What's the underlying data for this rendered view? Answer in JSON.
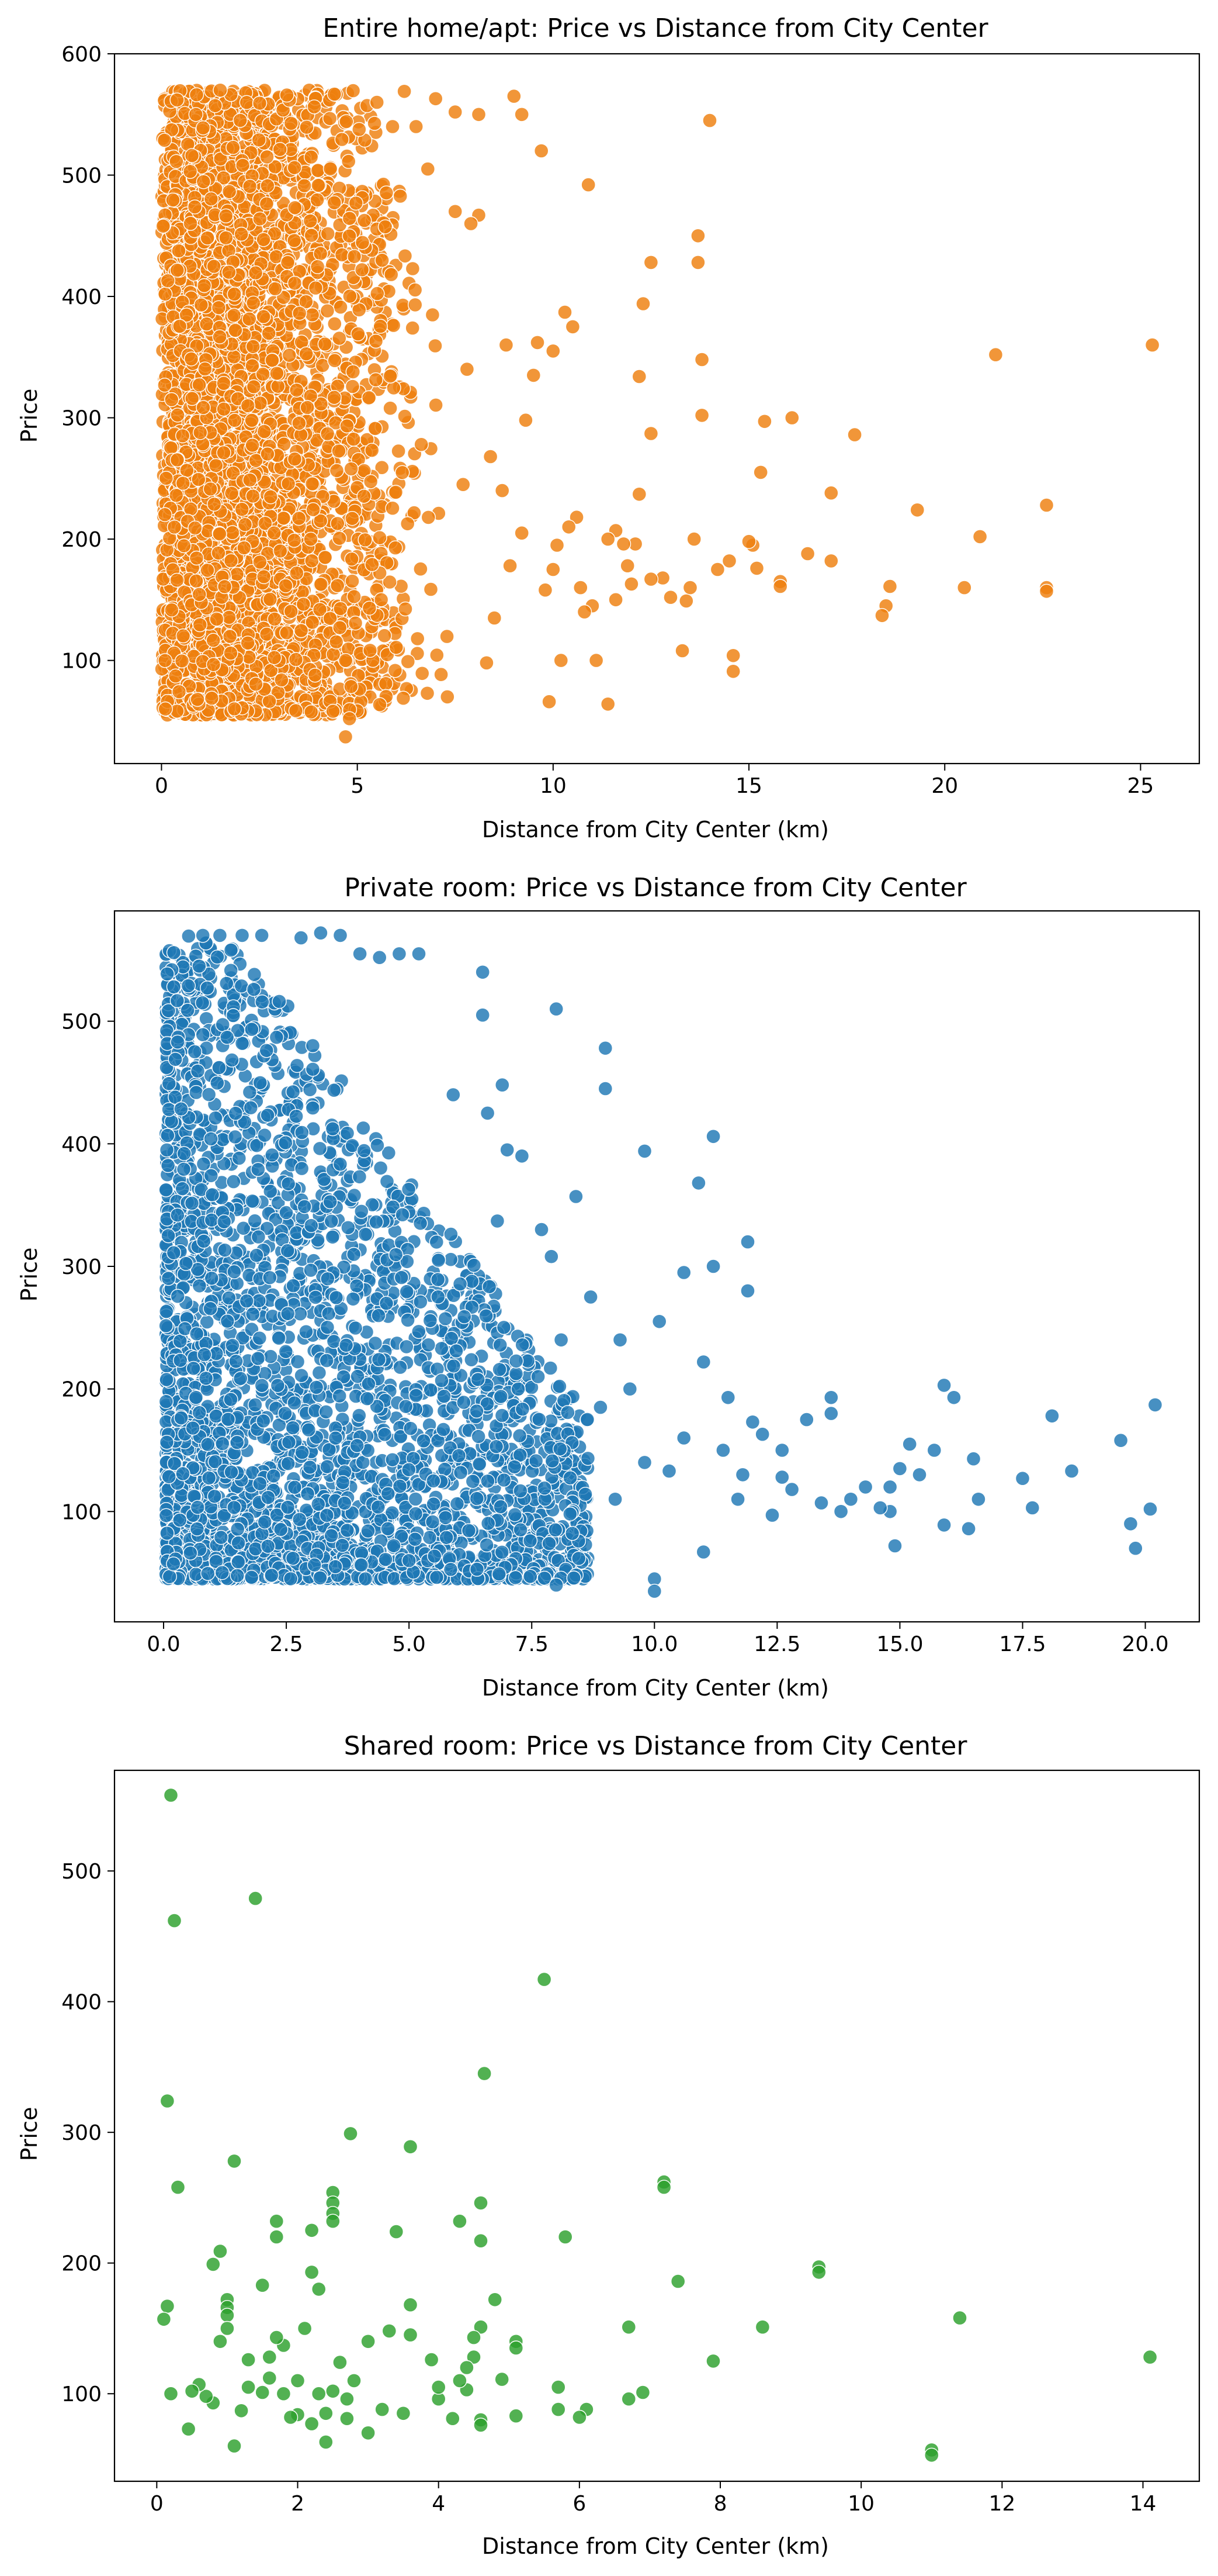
{
  "chart_data": [
    {
      "type": "scatter",
      "title": "Entire home/apt: Price vs Distance from City Center",
      "xlabel": "Distance from City Center (km)",
      "ylabel": "Price",
      "xlim": [
        -1.2,
        26.5
      ],
      "ylim": [
        15,
        600
      ],
      "xticks": [
        0,
        5,
        10,
        15,
        20,
        25
      ],
      "yticks": [
        100,
        200,
        300,
        400,
        500,
        600
      ],
      "grid": false,
      "color": "#ee7f0e",
      "points": [
        [
          25.3,
          360
        ],
        [
          22.6,
          228
        ],
        [
          22.6,
          160
        ],
        [
          22.6,
          157
        ],
        [
          21.3,
          352
        ],
        [
          20.9,
          202
        ],
        [
          20.5,
          160
        ],
        [
          19.3,
          224
        ],
        [
          18.5,
          145
        ],
        [
          18.4,
          137
        ],
        [
          18.6,
          161
        ],
        [
          17.7,
          286
        ],
        [
          17.1,
          238
        ],
        [
          17.1,
          182
        ],
        [
          16.5,
          188
        ],
        [
          16.1,
          300
        ],
        [
          15.8,
          165
        ],
        [
          15.8,
          161
        ],
        [
          15.4,
          297
        ],
        [
          15.3,
          255
        ],
        [
          15.2,
          176
        ],
        [
          15.1,
          195
        ],
        [
          15.0,
          198
        ],
        [
          14.6,
          104
        ],
        [
          14.6,
          91
        ],
        [
          14.5,
          182
        ],
        [
          14.2,
          175
        ],
        [
          14.0,
          545
        ],
        [
          13.8,
          348
        ],
        [
          13.8,
          302
        ],
        [
          13.7,
          450
        ],
        [
          13.7,
          428
        ],
        [
          13.6,
          200
        ],
        [
          13.5,
          160
        ],
        [
          13.4,
          149
        ],
        [
          13.3,
          108
        ],
        [
          13.0,
          152
        ],
        [
          12.8,
          168
        ],
        [
          12.5,
          167
        ],
        [
          12.5,
          428
        ],
        [
          12.5,
          287
        ],
        [
          12.3,
          394
        ],
        [
          12.2,
          334
        ],
        [
          12.2,
          237
        ],
        [
          12.1,
          196
        ],
        [
          12.0,
          163
        ],
        [
          11.9,
          178
        ],
        [
          11.8,
          196
        ],
        [
          11.6,
          207
        ],
        [
          11.6,
          150
        ],
        [
          11.4,
          200
        ],
        [
          11.4,
          64
        ],
        [
          11.1,
          100
        ],
        [
          10.9,
          492
        ],
        [
          10.7,
          160
        ],
        [
          10.6,
          218
        ],
        [
          10.5,
          375
        ],
        [
          10.3,
          387
        ],
        [
          10.2,
          100
        ],
        [
          10.1,
          195
        ],
        [
          10.0,
          355
        ],
        [
          10.0,
          175
        ],
        [
          9.9,
          66
        ],
        [
          9.7,
          520
        ],
        [
          9.6,
          362
        ],
        [
          9.5,
          335
        ],
        [
          9.3,
          298
        ],
        [
          9.2,
          205
        ],
        [
          9.2,
          550
        ],
        [
          9.0,
          565
        ],
        [
          8.8,
          360
        ],
        [
          8.7,
          240
        ],
        [
          8.5,
          135
        ],
        [
          8.4,
          268
        ],
        [
          8.1,
          467
        ],
        [
          8.1,
          550
        ],
        [
          7.9,
          460
        ],
        [
          7.8,
          340
        ],
        [
          7.5,
          470
        ],
        [
          7.5,
          552
        ],
        [
          7.3,
          70
        ],
        [
          7.0,
          563
        ],
        [
          6.5,
          540
        ],
        [
          6.2,
          569
        ],
        [
          5.9,
          540
        ],
        [
          4.7,
          37
        ],
        [
          4.8,
          52
        ],
        [
          11.0,
          145
        ],
        [
          10.8,
          140
        ],
        [
          10.4,
          210
        ],
        [
          9.8,
          158
        ],
        [
          8.9,
          178
        ],
        [
          8.3,
          98
        ],
        [
          7.7,
          245
        ],
        [
          6.8,
          505
        ],
        [
          5.5,
          560
        ],
        [
          3.2,
          566
        ],
        [
          1.5,
          570
        ],
        [
          0.1,
          60
        ]
      ]
    },
    {
      "type": "scatter",
      "title": "Private room: Price vs Distance from City Center",
      "xlabel": "Distance from City Center (km)",
      "ylabel": "Price",
      "xlim": [
        -1.0,
        21.1
      ],
      "ylim": [
        10,
        590
      ],
      "xticks": [
        0.0,
        2.5,
        5.0,
        7.5,
        10.0,
        12.5,
        15.0,
        17.5,
        20.0
      ],
      "yticks": [
        100,
        200,
        300,
        400,
        500
      ],
      "grid": false,
      "color": "#1f77b4",
      "points": [
        [
          20.2,
          187
        ],
        [
          20.1,
          102
        ],
        [
          19.8,
          70
        ],
        [
          19.7,
          90
        ],
        [
          19.5,
          158
        ],
        [
          18.5,
          133
        ],
        [
          18.1,
          178
        ],
        [
          17.7,
          103
        ],
        [
          17.5,
          127
        ],
        [
          16.6,
          110
        ],
        [
          16.5,
          143
        ],
        [
          16.4,
          86
        ],
        [
          16.1,
          193
        ],
        [
          15.9,
          203
        ],
        [
          15.9,
          89
        ],
        [
          15.7,
          150
        ],
        [
          15.4,
          130
        ],
        [
          15.2,
          155
        ],
        [
          15.0,
          135
        ],
        [
          14.8,
          120
        ],
        [
          14.8,
          100
        ],
        [
          14.9,
          72
        ],
        [
          14.6,
          103
        ],
        [
          14.3,
          120
        ],
        [
          14.0,
          110
        ],
        [
          13.8,
          100
        ],
        [
          13.6,
          193
        ],
        [
          13.6,
          180
        ],
        [
          13.4,
          107
        ],
        [
          13.1,
          175
        ],
        [
          12.8,
          118
        ],
        [
          12.6,
          128
        ],
        [
          12.6,
          150
        ],
        [
          12.4,
          97
        ],
        [
          12.2,
          163
        ],
        [
          12.0,
          173
        ],
        [
          11.9,
          320
        ],
        [
          11.9,
          280
        ],
        [
          11.8,
          130
        ],
        [
          11.7,
          110
        ],
        [
          11.5,
          193
        ],
        [
          11.4,
          150
        ],
        [
          11.2,
          406
        ],
        [
          11.2,
          300
        ],
        [
          11.0,
          222
        ],
        [
          11.0,
          67
        ],
        [
          10.9,
          368
        ],
        [
          10.6,
          295
        ],
        [
          10.6,
          160
        ],
        [
          10.3,
          133
        ],
        [
          10.1,
          255
        ],
        [
          10.0,
          45
        ],
        [
          10.0,
          35
        ],
        [
          9.8,
          394
        ],
        [
          9.8,
          140
        ],
        [
          9.5,
          200
        ],
        [
          9.3,
          240
        ],
        [
          9.2,
          110
        ],
        [
          9.0,
          478
        ],
        [
          9.0,
          445
        ],
        [
          8.9,
          185
        ],
        [
          8.7,
          275
        ],
        [
          8.4,
          357
        ],
        [
          8.1,
          240
        ],
        [
          8.0,
          510
        ],
        [
          8.0,
          40
        ],
        [
          7.9,
          308
        ],
        [
          7.7,
          330
        ],
        [
          7.3,
          390
        ],
        [
          7.0,
          395
        ],
        [
          6.9,
          448
        ],
        [
          6.8,
          337
        ],
        [
          6.6,
          425
        ],
        [
          6.5,
          540
        ],
        [
          6.5,
          505
        ],
        [
          5.9,
          440
        ],
        [
          5.6,
          305
        ],
        [
          5.2,
          555
        ],
        [
          4.8,
          555
        ],
        [
          4.4,
          552
        ],
        [
          4.0,
          555
        ],
        [
          3.6,
          570
        ],
        [
          3.2,
          572
        ],
        [
          2.8,
          568
        ],
        [
          2.0,
          570
        ],
        [
          1.6,
          570
        ],
        [
          0.8,
          570
        ],
        [
          5.0,
          60
        ],
        [
          3.5,
          55
        ],
        [
          2.2,
          48
        ]
      ]
    },
    {
      "type": "scatter",
      "title": "Shared room: Price vs Distance from City Center",
      "xlabel": "Distance from City Center (km)",
      "ylabel": "Price",
      "xlim": [
        -0.6,
        14.8
      ],
      "ylim": [
        33,
        577
      ],
      "xticks": [
        0,
        2,
        4,
        6,
        8,
        10,
        12,
        14
      ],
      "yticks": [
        100,
        200,
        300,
        400,
        500
      ],
      "grid": false,
      "color": "#2ca02c",
      "points": [
        [
          0.2,
          558
        ],
        [
          0.25,
          462
        ],
        [
          1.4,
          479
        ],
        [
          5.5,
          417
        ],
        [
          0.15,
          324
        ],
        [
          4.65,
          345
        ],
        [
          0.3,
          258
        ],
        [
          1.1,
          278
        ],
        [
          2.75,
          299
        ],
        [
          3.6,
          289
        ],
        [
          7.2,
          262
        ],
        [
          7.2,
          258
        ],
        [
          4.6,
          246
        ],
        [
          2.5,
          254
        ],
        [
          2.5,
          246
        ],
        [
          2.5,
          238
        ],
        [
          2.5,
          232
        ],
        [
          1.7,
          232
        ],
        [
          1.7,
          220
        ],
        [
          2.2,
          225
        ],
        [
          3.4,
          224
        ],
        [
          4.3,
          232
        ],
        [
          4.6,
          217
        ],
        [
          5.8,
          220
        ],
        [
          7.4,
          186
        ],
        [
          9.4,
          197
        ],
        [
          9.4,
          193
        ],
        [
          11.4,
          158
        ],
        [
          14.1,
          128
        ],
        [
          11.0,
          57
        ],
        [
          11.0,
          53
        ],
        [
          8.6,
          151
        ],
        [
          7.9,
          125
        ],
        [
          6.7,
          151
        ],
        [
          6.9,
          101
        ],
        [
          6.7,
          96
        ],
        [
          6.1,
          88
        ],
        [
          6.0,
          82
        ],
        [
          5.7,
          105
        ],
        [
          5.7,
          88
        ],
        [
          5.1,
          140
        ],
        [
          5.1,
          135
        ],
        [
          5.1,
          83
        ],
        [
          4.9,
          111
        ],
        [
          4.8,
          172
        ],
        [
          4.6,
          151
        ],
        [
          4.5,
          143
        ],
        [
          4.5,
          128
        ],
        [
          4.6,
          80
        ],
        [
          4.6,
          76
        ],
        [
          4.4,
          120
        ],
        [
          4.4,
          103
        ],
        [
          4.3,
          110
        ],
        [
          4.2,
          81
        ],
        [
          4.0,
          96
        ],
        [
          4.0,
          105
        ],
        [
          3.9,
          126
        ],
        [
          3.6,
          168
        ],
        [
          3.6,
          145
        ],
        [
          3.5,
          85
        ],
        [
          3.3,
          148
        ],
        [
          3.2,
          88
        ],
        [
          3.0,
          140
        ],
        [
          3.0,
          70
        ],
        [
          2.8,
          110
        ],
        [
          2.7,
          96
        ],
        [
          2.7,
          81
        ],
        [
          2.6,
          124
        ],
        [
          2.5,
          102
        ],
        [
          2.4,
          85
        ],
        [
          2.4,
          63
        ],
        [
          2.3,
          180
        ],
        [
          2.3,
          100
        ],
        [
          2.2,
          193
        ],
        [
          2.2,
          77
        ],
        [
          2.1,
          150
        ],
        [
          2.0,
          110
        ],
        [
          2.0,
          84
        ],
        [
          1.9,
          82
        ],
        [
          1.8,
          137
        ],
        [
          1.8,
          100
        ],
        [
          1.7,
          143
        ],
        [
          1.6,
          128
        ],
        [
          1.6,
          112
        ],
        [
          1.5,
          101
        ],
        [
          1.5,
          183
        ],
        [
          1.3,
          126
        ],
        [
          1.3,
          105
        ],
        [
          1.2,
          87
        ],
        [
          1.1,
          60
        ],
        [
          1.0,
          172
        ],
        [
          1.0,
          166
        ],
        [
          1.0,
          160
        ],
        [
          1.0,
          150
        ],
        [
          0.9,
          209
        ],
        [
          0.9,
          140
        ],
        [
          0.8,
          199
        ],
        [
          0.8,
          93
        ],
        [
          0.7,
          98
        ],
        [
          0.6,
          107
        ],
        [
          0.5,
          102
        ],
        [
          0.45,
          73
        ],
        [
          0.2,
          100
        ],
        [
          0.15,
          167
        ],
        [
          0.1,
          157
        ]
      ]
    }
  ]
}
